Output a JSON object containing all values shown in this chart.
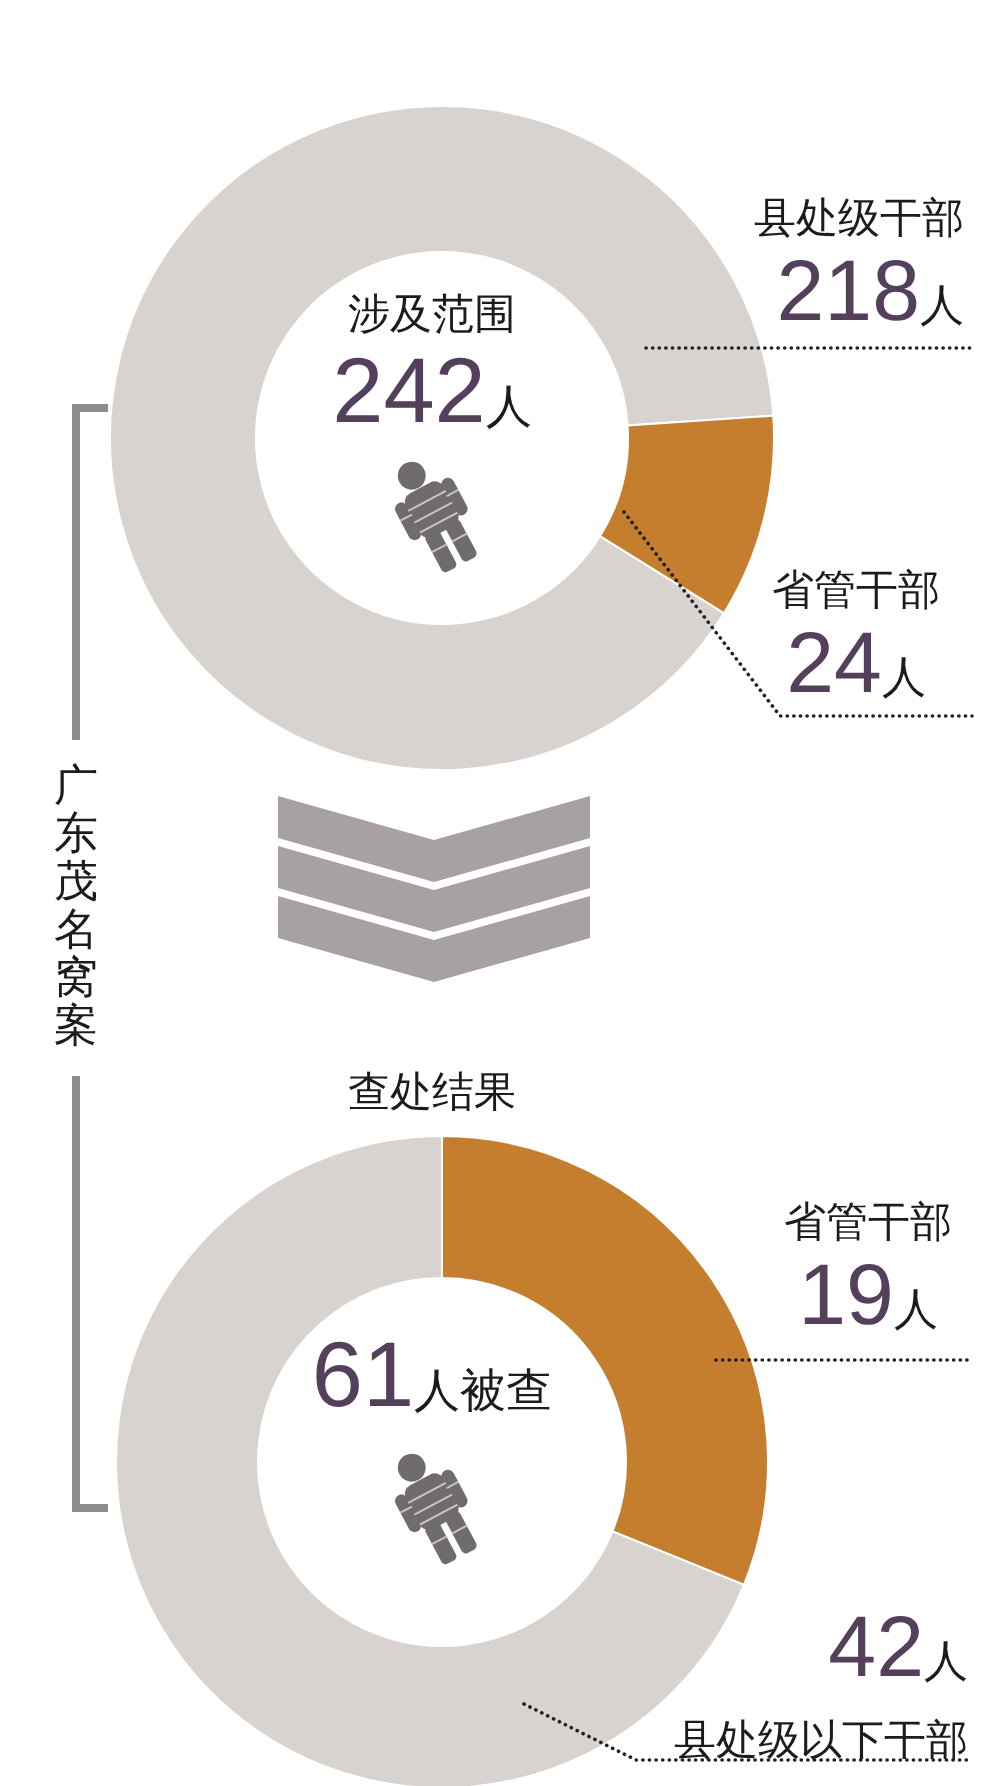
{
  "chart_data": [
    {
      "type": "donut",
      "title": "广东茂名窝案",
      "subtitle": "涉及范围",
      "categories": [
        "县处级干部",
        "省管干部"
      ],
      "values": [
        218,
        24
      ],
      "colors": [
        "#d9d3d0",
        "#c57e2e"
      ],
      "value_labels": [
        "218人",
        "24人"
      ],
      "annotations": [
        "242人"
      ]
    },
    {
      "type": "donut",
      "title": "查处结果",
      "categories": [
        "省管干部",
        "县处级以下干部"
      ],
      "values": [
        19,
        42
      ],
      "colors": [
        "#c57e2e",
        "#d9d3d0"
      ],
      "value_labels": [
        "19人",
        "42人"
      ],
      "annotations": [
        "61人被查"
      ]
    }
  ]
}
